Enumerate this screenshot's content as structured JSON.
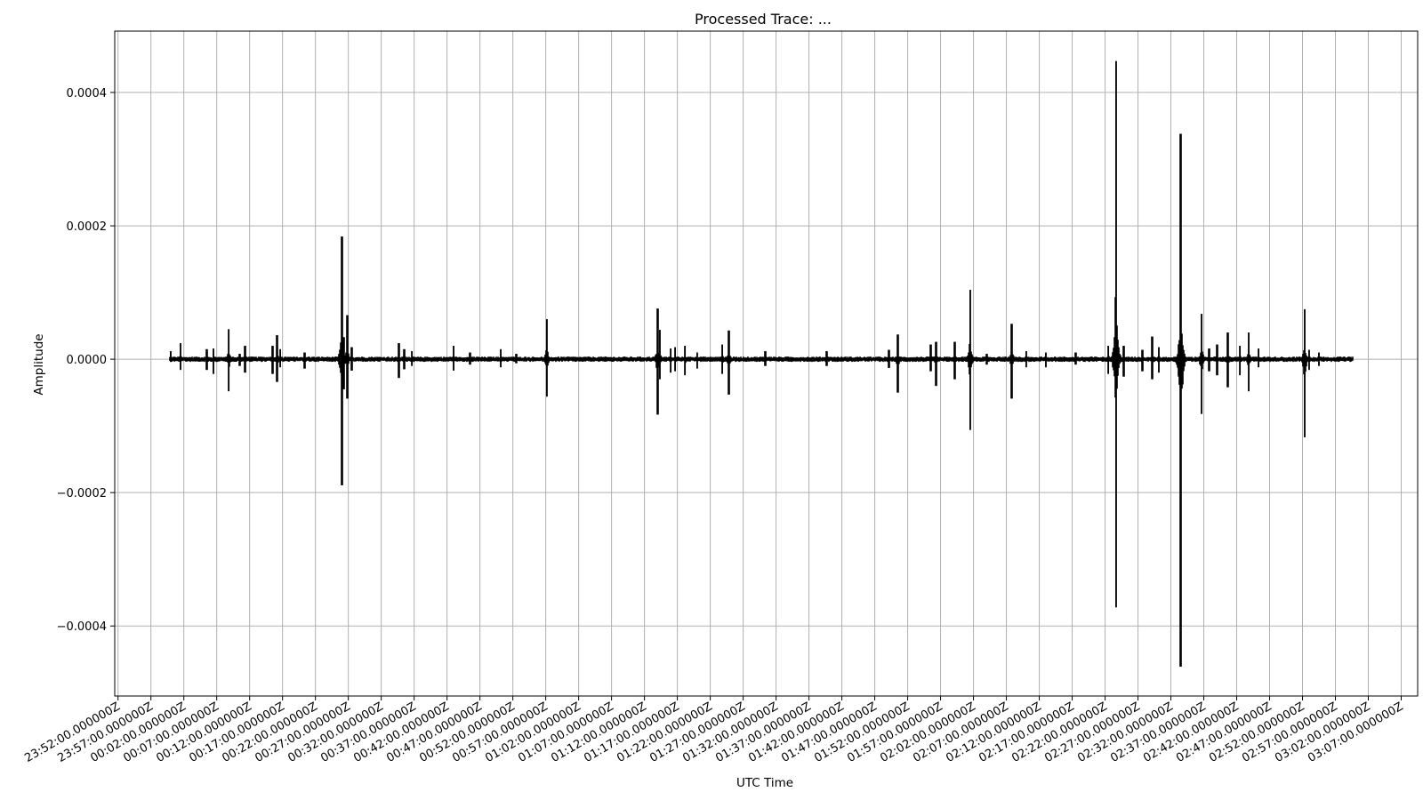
{
  "chart_data": {
    "type": "line",
    "title": "Processed Trace: ...",
    "xlabel": "UTC Time",
    "ylabel": "Amplitude",
    "grid": true,
    "legend": "none",
    "series_color": "#000000",
    "grid_color": "#b0b0b0",
    "x_time_range": [
      "23:51:30",
      "03:09:30"
    ],
    "ylim": [
      -0.000505,
      0.000492
    ],
    "x_ticks": [
      {
        "time": "23:52:00",
        "label": "23:52:00.000000Z"
      },
      {
        "time": "23:57:00",
        "label": "23:57:00.000000Z"
      },
      {
        "time": "00:02:00",
        "label": "00:02:00.000000Z"
      },
      {
        "time": "00:07:00",
        "label": "00:07:00.000000Z"
      },
      {
        "time": "00:12:00",
        "label": "00:12:00.000000Z"
      },
      {
        "time": "00:17:00",
        "label": "00:17:00.000000Z"
      },
      {
        "time": "00:22:00",
        "label": "00:22:00.000000Z"
      },
      {
        "time": "00:27:00",
        "label": "00:27:00.000000Z"
      },
      {
        "time": "00:32:00",
        "label": "00:32:00.000000Z"
      },
      {
        "time": "00:37:00",
        "label": "00:37:00.000000Z"
      },
      {
        "time": "00:42:00",
        "label": "00:42:00.000000Z"
      },
      {
        "time": "00:47:00",
        "label": "00:47:00.000000Z"
      },
      {
        "time": "00:52:00",
        "label": "00:52:00.000000Z"
      },
      {
        "time": "00:57:00",
        "label": "00:57:00.000000Z"
      },
      {
        "time": "01:02:00",
        "label": "01:02:00.000000Z"
      },
      {
        "time": "01:07:00",
        "label": "01:07:00.000000Z"
      },
      {
        "time": "01:12:00",
        "label": "01:12:00.000000Z"
      },
      {
        "time": "01:17:00",
        "label": "01:17:00.000000Z"
      },
      {
        "time": "01:22:00",
        "label": "01:22:00.000000Z"
      },
      {
        "time": "01:27:00",
        "label": "01:27:00.000000Z"
      },
      {
        "time": "01:32:00",
        "label": "01:32:00.000000Z"
      },
      {
        "time": "01:37:00",
        "label": "01:37:00.000000Z"
      },
      {
        "time": "01:42:00",
        "label": "01:42:00.000000Z"
      },
      {
        "time": "01:47:00",
        "label": "01:47:00.000000Z"
      },
      {
        "time": "01:52:00",
        "label": "01:52:00.000000Z"
      },
      {
        "time": "01:57:00",
        "label": "01:57:00.000000Z"
      },
      {
        "time": "02:02:00",
        "label": "02:02:00.000000Z"
      },
      {
        "time": "02:07:00",
        "label": "02:07:00.000000Z"
      },
      {
        "time": "02:12:00",
        "label": "02:12:00.000000Z"
      },
      {
        "time": "02:17:00",
        "label": "02:17:00.000000Z"
      },
      {
        "time": "02:22:00",
        "label": "02:22:00.000000Z"
      },
      {
        "time": "02:27:00",
        "label": "02:27:00.000000Z"
      },
      {
        "time": "02:32:00",
        "label": "02:32:00.000000Z"
      },
      {
        "time": "02:37:00",
        "label": "02:37:00.000000Z"
      },
      {
        "time": "02:42:00",
        "label": "02:42:00.000000Z"
      },
      {
        "time": "02:47:00",
        "label": "02:47:00.000000Z"
      },
      {
        "time": "02:52:00",
        "label": "02:52:00.000000Z"
      },
      {
        "time": "02:57:00",
        "label": "02:57:00.000000Z"
      },
      {
        "time": "03:02:00",
        "label": "03:02:00.000000Z"
      },
      {
        "time": "03:07:00",
        "label": "03:07:00.000000Z"
      }
    ],
    "y_ticks": [
      {
        "value": 0.0004,
        "label": "0.0004"
      },
      {
        "value": 0.0002,
        "label": "0.0002"
      },
      {
        "value": 0.0,
        "label": "0.0000"
      },
      {
        "value": -0.0002,
        "label": "−0.0002"
      },
      {
        "value": -0.0004,
        "label": "−0.0004"
      }
    ],
    "series": [
      {
        "trace_start": "00:00:00",
        "trace_end": "02:59:30",
        "noise_level": 3.5e-06,
        "events": [
          {
            "time": "00:00:00",
            "max": 1.2e-05,
            "min": -4e-06
          },
          {
            "time": "00:01:30",
            "max": 2.4e-05,
            "min": -1.6e-05
          },
          {
            "time": "00:05:30",
            "max": 1.5e-05,
            "min": -1.6e-05
          },
          {
            "time": "00:06:30",
            "max": 1.6e-05,
            "min": -2.2e-05
          },
          {
            "time": "00:08:50",
            "max": 4.5e-05,
            "min": -4.8e-05
          },
          {
            "time": "00:10:30",
            "max": 8e-06,
            "min": -1e-05
          },
          {
            "time": "00:11:20",
            "max": 2e-05,
            "min": -2e-05
          },
          {
            "time": "00:15:30",
            "max": 2e-05,
            "min": -2.2e-05
          },
          {
            "time": "00:16:10",
            "max": 3.6e-05,
            "min": -3.4e-05
          },
          {
            "time": "00:16:40",
            "max": 1.5e-05,
            "min": -1.2e-05
          },
          {
            "time": "00:20:20",
            "max": 1e-05,
            "min": -1.4e-05
          },
          {
            "time": "00:26:00",
            "max": 0.000184,
            "min": -0.000189
          },
          {
            "time": "00:26:20",
            "max": 3.3e-05,
            "min": -4.5e-05
          },
          {
            "time": "00:26:50",
            "max": 6.6e-05,
            "min": -5.9e-05
          },
          {
            "time": "00:27:30",
            "max": 1.8e-05,
            "min": -1.7e-05
          },
          {
            "time": "00:34:40",
            "max": 2.4e-05,
            "min": -2.8e-05
          },
          {
            "time": "00:35:30",
            "max": 1.5e-05,
            "min": -1.5e-05
          },
          {
            "time": "00:36:40",
            "max": 1.2e-05,
            "min": -1e-05
          },
          {
            "time": "00:43:00",
            "max": 2e-05,
            "min": -1.7e-05
          },
          {
            "time": "00:45:30",
            "max": 1e-05,
            "min": -8e-06
          },
          {
            "time": "00:50:10",
            "max": 1.5e-05,
            "min": -1.2e-05
          },
          {
            "time": "00:52:30",
            "max": 8e-06,
            "min": -6e-06
          },
          {
            "time": "00:57:10",
            "max": 6e-05,
            "min": -5.6e-05
          },
          {
            "time": "01:14:00",
            "max": 7.6e-05,
            "min": -8.3e-05
          },
          {
            "time": "01:14:20",
            "max": 4.4e-05,
            "min": -3e-05
          },
          {
            "time": "01:16:00",
            "max": 1.6e-05,
            "min": -2e-05
          },
          {
            "time": "01:16:40",
            "max": 1.8e-05,
            "min": -1.8e-05
          },
          {
            "time": "01:18:10",
            "max": 2e-05,
            "min": -2.4e-05
          },
          {
            "time": "01:20:00",
            "max": 1e-05,
            "min": -1.4e-05
          },
          {
            "time": "01:23:50",
            "max": 2.2e-05,
            "min": -2.2e-05
          },
          {
            "time": "01:24:50",
            "max": 4.3e-05,
            "min": -5.3e-05
          },
          {
            "time": "01:30:20",
            "max": 1.2e-05,
            "min": -1e-05
          },
          {
            "time": "01:39:40",
            "max": 1.2e-05,
            "min": -1e-05
          },
          {
            "time": "01:49:10",
            "max": 1.4e-05,
            "min": -1.3e-05
          },
          {
            "time": "01:50:30",
            "max": 3.7e-05,
            "min": -5e-05
          },
          {
            "time": "01:55:30",
            "max": 2.2e-05,
            "min": -1.8e-05
          },
          {
            "time": "01:56:20",
            "max": 2.6e-05,
            "min": -4e-05
          },
          {
            "time": "01:59:10",
            "max": 2.6e-05,
            "min": -3e-05
          },
          {
            "time": "02:01:30",
            "max": 0.000104,
            "min": -0.000106
          },
          {
            "time": "02:04:00",
            "max": 8e-06,
            "min": -8e-06
          },
          {
            "time": "02:07:50",
            "max": 5.3e-05,
            "min": -5.9e-05
          },
          {
            "time": "02:10:00",
            "max": 1.2e-05,
            "min": -1.2e-05
          },
          {
            "time": "02:13:00",
            "max": 1e-05,
            "min": -1.2e-05
          },
          {
            "time": "02:17:30",
            "max": 1e-05,
            "min": -8e-06
          },
          {
            "time": "02:22:30",
            "max": 2e-05,
            "min": -2.2e-05
          },
          {
            "time": "02:23:40",
            "max": 0.000447,
            "min": -0.000372
          },
          {
            "time": "02:24:50",
            "max": 2e-05,
            "min": -2.6e-05
          },
          {
            "time": "02:27:40",
            "max": 1.4e-05,
            "min": -1.8e-05
          },
          {
            "time": "02:29:10",
            "max": 3.4e-05,
            "min": -3e-05
          },
          {
            "time": "02:30:10",
            "max": 1.8e-05,
            "min": -2e-05
          },
          {
            "time": "02:33:30",
            "max": 0.000338,
            "min": -0.000461
          },
          {
            "time": "02:36:40",
            "max": 6.8e-05,
            "min": -8.2e-05
          },
          {
            "time": "02:37:50",
            "max": 1.6e-05,
            "min": -1.8e-05
          },
          {
            "time": "02:39:00",
            "max": 2.2e-05,
            "min": -2.4e-05
          },
          {
            "time": "02:40:40",
            "max": 4e-05,
            "min": -4.2e-05
          },
          {
            "time": "02:42:30",
            "max": 2e-05,
            "min": -2.4e-05
          },
          {
            "time": "02:43:50",
            "max": 4e-05,
            "min": -4.8e-05
          },
          {
            "time": "02:45:20",
            "max": 1.6e-05,
            "min": -1.2e-05
          },
          {
            "time": "02:52:20",
            "max": 7.5e-05,
            "min": -0.000117
          },
          {
            "time": "02:53:00",
            "max": 1.4e-05,
            "min": -1.6e-05
          },
          {
            "time": "02:54:30",
            "max": 1e-05,
            "min": -1e-05
          }
        ]
      }
    ]
  }
}
